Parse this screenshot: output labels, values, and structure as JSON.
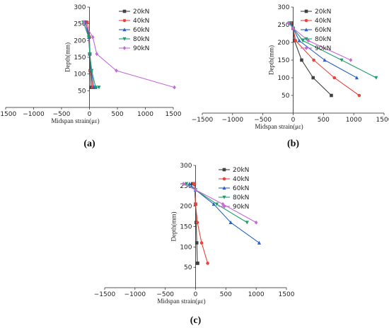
{
  "colors": {
    "20kN": "#404040",
    "40kN": "#e8453c",
    "60kN": "#2a62c9",
    "80kN": "#1e9e6a",
    "90kN": "#c36ad6"
  },
  "chart_data": [
    {
      "type": "line",
      "panel_label": "(a)",
      "xlabel": "Midspan strain(με)",
      "ylabel": "Depth(mm)",
      "xlim": [
        -1500,
        1500
      ],
      "ylim": [
        0,
        300
      ],
      "xticks": [
        -1500,
        -1000,
        -500,
        0,
        500,
        1000,
        1500
      ],
      "yticks": [
        50,
        100,
        150,
        200,
        250,
        300
      ],
      "legend_position": "top-right",
      "series": [
        {
          "name": "20kN",
          "x": [
            -70,
            -5,
            5,
            15,
            30,
            60
          ],
          "y": [
            255,
            210,
            160,
            110,
            60,
            60
          ]
        },
        {
          "name": "40kN",
          "x": [
            -40,
            0,
            10,
            25,
            55,
            90
          ],
          "y": [
            255,
            210,
            160,
            110,
            60,
            60
          ]
        },
        {
          "name": "60kN",
          "x": [
            -80,
            -10,
            5,
            30,
            80,
            110
          ],
          "y": [
            255,
            210,
            160,
            110,
            60,
            60
          ]
        },
        {
          "name": "80kN",
          "x": [
            -110,
            -15,
            5,
            40,
            110,
            170
          ],
          "y": [
            255,
            210,
            160,
            110,
            60,
            60
          ]
        },
        {
          "name": "90kN",
          "x": [
            -100,
            60,
            130,
            480,
            1520
          ],
          "y": [
            255,
            210,
            160,
            110,
            60
          ]
        }
      ]
    },
    {
      "type": "line",
      "panel_label": "(b)",
      "xlabel": "Midspan strain(με)",
      "ylabel": "Depth(mm)",
      "xlim": [
        -1500,
        1500
      ],
      "ylim": [
        0,
        300
      ],
      "xticks": [
        -1500,
        -1000,
        -500,
        0,
        500,
        1000,
        1500
      ],
      "yticks": [
        50,
        100,
        150,
        200,
        250,
        300
      ],
      "legend_position": "top-right",
      "series": [
        {
          "name": "20kN",
          "x": [
            -20,
            0,
            20,
            140,
            330,
            630
          ],
          "y": [
            255,
            240,
            205,
            150,
            100,
            50
          ]
        },
        {
          "name": "40kN",
          "x": [
            -40,
            0,
            40,
            340,
            680,
            1090
          ],
          "y": [
            255,
            240,
            205,
            150,
            100,
            50
          ]
        },
        {
          "name": "60kN",
          "x": [
            -50,
            0,
            100,
            520,
            1050
          ],
          "y": [
            255,
            240,
            205,
            150,
            100
          ]
        },
        {
          "name": "80kN",
          "x": [
            -60,
            0,
            160,
            800,
            1370
          ],
          "y": [
            255,
            240,
            205,
            150,
            100
          ]
        },
        {
          "name": "90kN",
          "x": [
            -80,
            0,
            250,
            950
          ],
          "y": [
            255,
            240,
            205,
            150
          ]
        }
      ]
    },
    {
      "type": "line",
      "panel_label": "(c)",
      "xlabel": "Midspan strain(με)",
      "ylabel": "Depth(mm)",
      "xlim": [
        -1500,
        1500
      ],
      "ylim": [
        0,
        300
      ],
      "xticks": [
        -1500,
        -1000,
        -500,
        0,
        500,
        1000,
        1500
      ],
      "yticks": [
        50,
        100,
        150,
        200,
        250,
        300
      ],
      "legend_position": "top-right",
      "series": [
        {
          "name": "20kN",
          "x": [
            -50,
            -20,
            0,
            10,
            20,
            30,
            35
          ],
          "y": [
            255,
            255,
            205,
            160,
            110,
            60,
            60
          ]
        },
        {
          "name": "40kN",
          "x": [
            -30,
            -20,
            0,
            30,
            100,
            200
          ],
          "y": [
            255,
            255,
            205,
            160,
            110,
            60
          ]
        },
        {
          "name": "60kN",
          "x": [
            -100,
            0,
            300,
            580,
            1050
          ],
          "y": [
            255,
            240,
            205,
            160,
            110
          ]
        },
        {
          "name": "80kN",
          "x": [
            -150,
            0,
            350,
            850
          ],
          "y": [
            255,
            240,
            205,
            160
          ]
        },
        {
          "name": "90kN",
          "x": [
            -200,
            0,
            450,
            1000
          ],
          "y": [
            255,
            240,
            205,
            160
          ]
        }
      ]
    }
  ]
}
